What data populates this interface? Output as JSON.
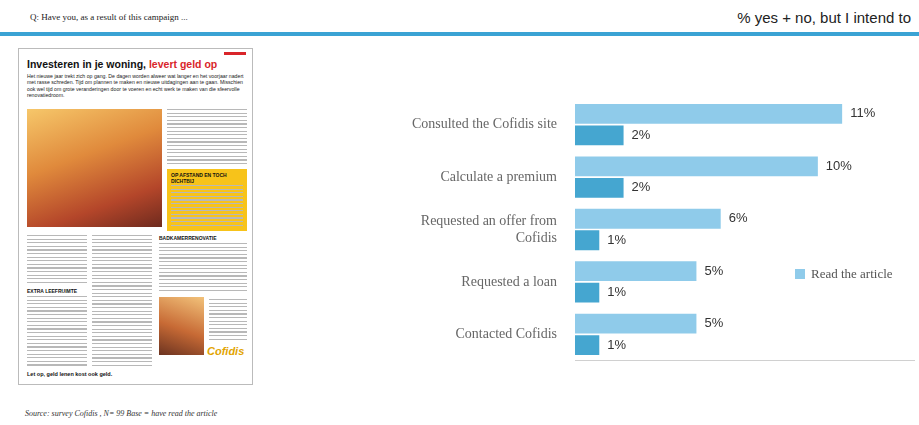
{
  "header": {
    "question": "Q: Have you, as a result of this campaign ...",
    "subtitle": "% yes + no, but I intend to"
  },
  "source": "Source: survey Cofidis , N= 99 Base = have read the article",
  "article": {
    "title": "Investeren in je woning,",
    "title_highlight": "levert geld op",
    "intro": "Het nieuwe jaar trekt zich op gang. De dagen worden alweer wat langer en het voorjaar nadert met rasse schreden. Tijd om plannen te maken en nieuwe uitdagingen aan te gaan. Misschien ook wel tijd om grote veranderingen door te voeren en echt werk te maken van die sfeervolle renovatiedroom.",
    "box_heading": "OP AFSTAND EN TOCH DICHTBIJ",
    "subheads": [
      "EXTRA LEEFRUIMTE",
      "BADKAMERRENOVATIE"
    ],
    "footer": "Let op, geld lenen kost ook geld.",
    "logo": "Cofidis"
  },
  "chart_data": {
    "type": "bar",
    "orientation": "horizontal",
    "categories": [
      "Consulted the Cofidis site",
      "Calculate a premium",
      "Requested an offer from Cofidis",
      "Requested a loan",
      "Contacted Cofidis"
    ],
    "series": [
      {
        "name": "Read the article",
        "color": "#8fcbea",
        "values": [
          11,
          10,
          6,
          5,
          5
        ],
        "value_labels": [
          "11%",
          "10%",
          "6%",
          "5%",
          "5%"
        ]
      },
      {
        "color": "#45a6d0",
        "values": [
          2,
          2,
          1,
          1,
          1
        ],
        "value_labels": [
          "2%",
          "2%",
          "1%",
          "1%",
          "1%"
        ]
      }
    ],
    "xlim": [
      0,
      14
    ],
    "grid": false,
    "legend": "right",
    "data_labels": true,
    "tick_labels": "y"
  }
}
